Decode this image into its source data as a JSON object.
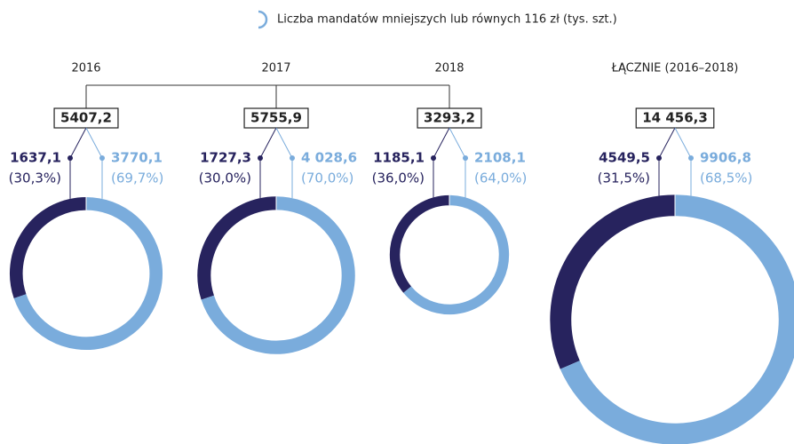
{
  "legend": {
    "text": "Liczba mandatów mniejszych lub równych 116 zł (tys. szt.)",
    "color": "#7aacdc"
  },
  "chart_data": [
    {
      "type": "donut",
      "title": "2016",
      "total": 5407.2,
      "total_label": "5407,2",
      "values": [
        1637.1,
        3770.1
      ],
      "value_labels": [
        "1637,1",
        "3770,1"
      ],
      "shares": [
        30.3,
        69.7
      ],
      "share_labels": [
        "(30,3%)",
        "(69,7%)"
      ],
      "colors": [
        "#27235e",
        "#7aacdc"
      ]
    },
    {
      "type": "donut",
      "title": "2017",
      "total": 5755.9,
      "total_label": "5755,9",
      "values": [
        1727.3,
        4028.6
      ],
      "value_labels": [
        "1727,3",
        "4 028,6"
      ],
      "shares": [
        30.0,
        70.0
      ],
      "share_labels": [
        "(30,0%)",
        "(70,0%)"
      ],
      "colors": [
        "#27235e",
        "#7aacdc"
      ]
    },
    {
      "type": "donut",
      "title": "2018",
      "total": 3293.2,
      "total_label": "3293,2",
      "values": [
        1185.1,
        2108.1
      ],
      "value_labels": [
        "1185,1",
        "2108,1"
      ],
      "shares": [
        36.0,
        64.0
      ],
      "share_labels": [
        "(36,0%)",
        "(64,0%)"
      ],
      "colors": [
        "#27235e",
        "#7aacdc"
      ]
    },
    {
      "type": "donut",
      "title": "ŁĄCZNIE (2016–2018)",
      "total": 14456.3,
      "total_label": "14 456,3",
      "values": [
        4549.5,
        9906.8
      ],
      "value_labels": [
        "4549,5",
        "9906,8"
      ],
      "shares": [
        31.5,
        68.5
      ],
      "share_labels": [
        "(31,5%)",
        "(68,5%)"
      ],
      "colors": [
        "#27235e",
        "#7aacdc"
      ]
    }
  ]
}
